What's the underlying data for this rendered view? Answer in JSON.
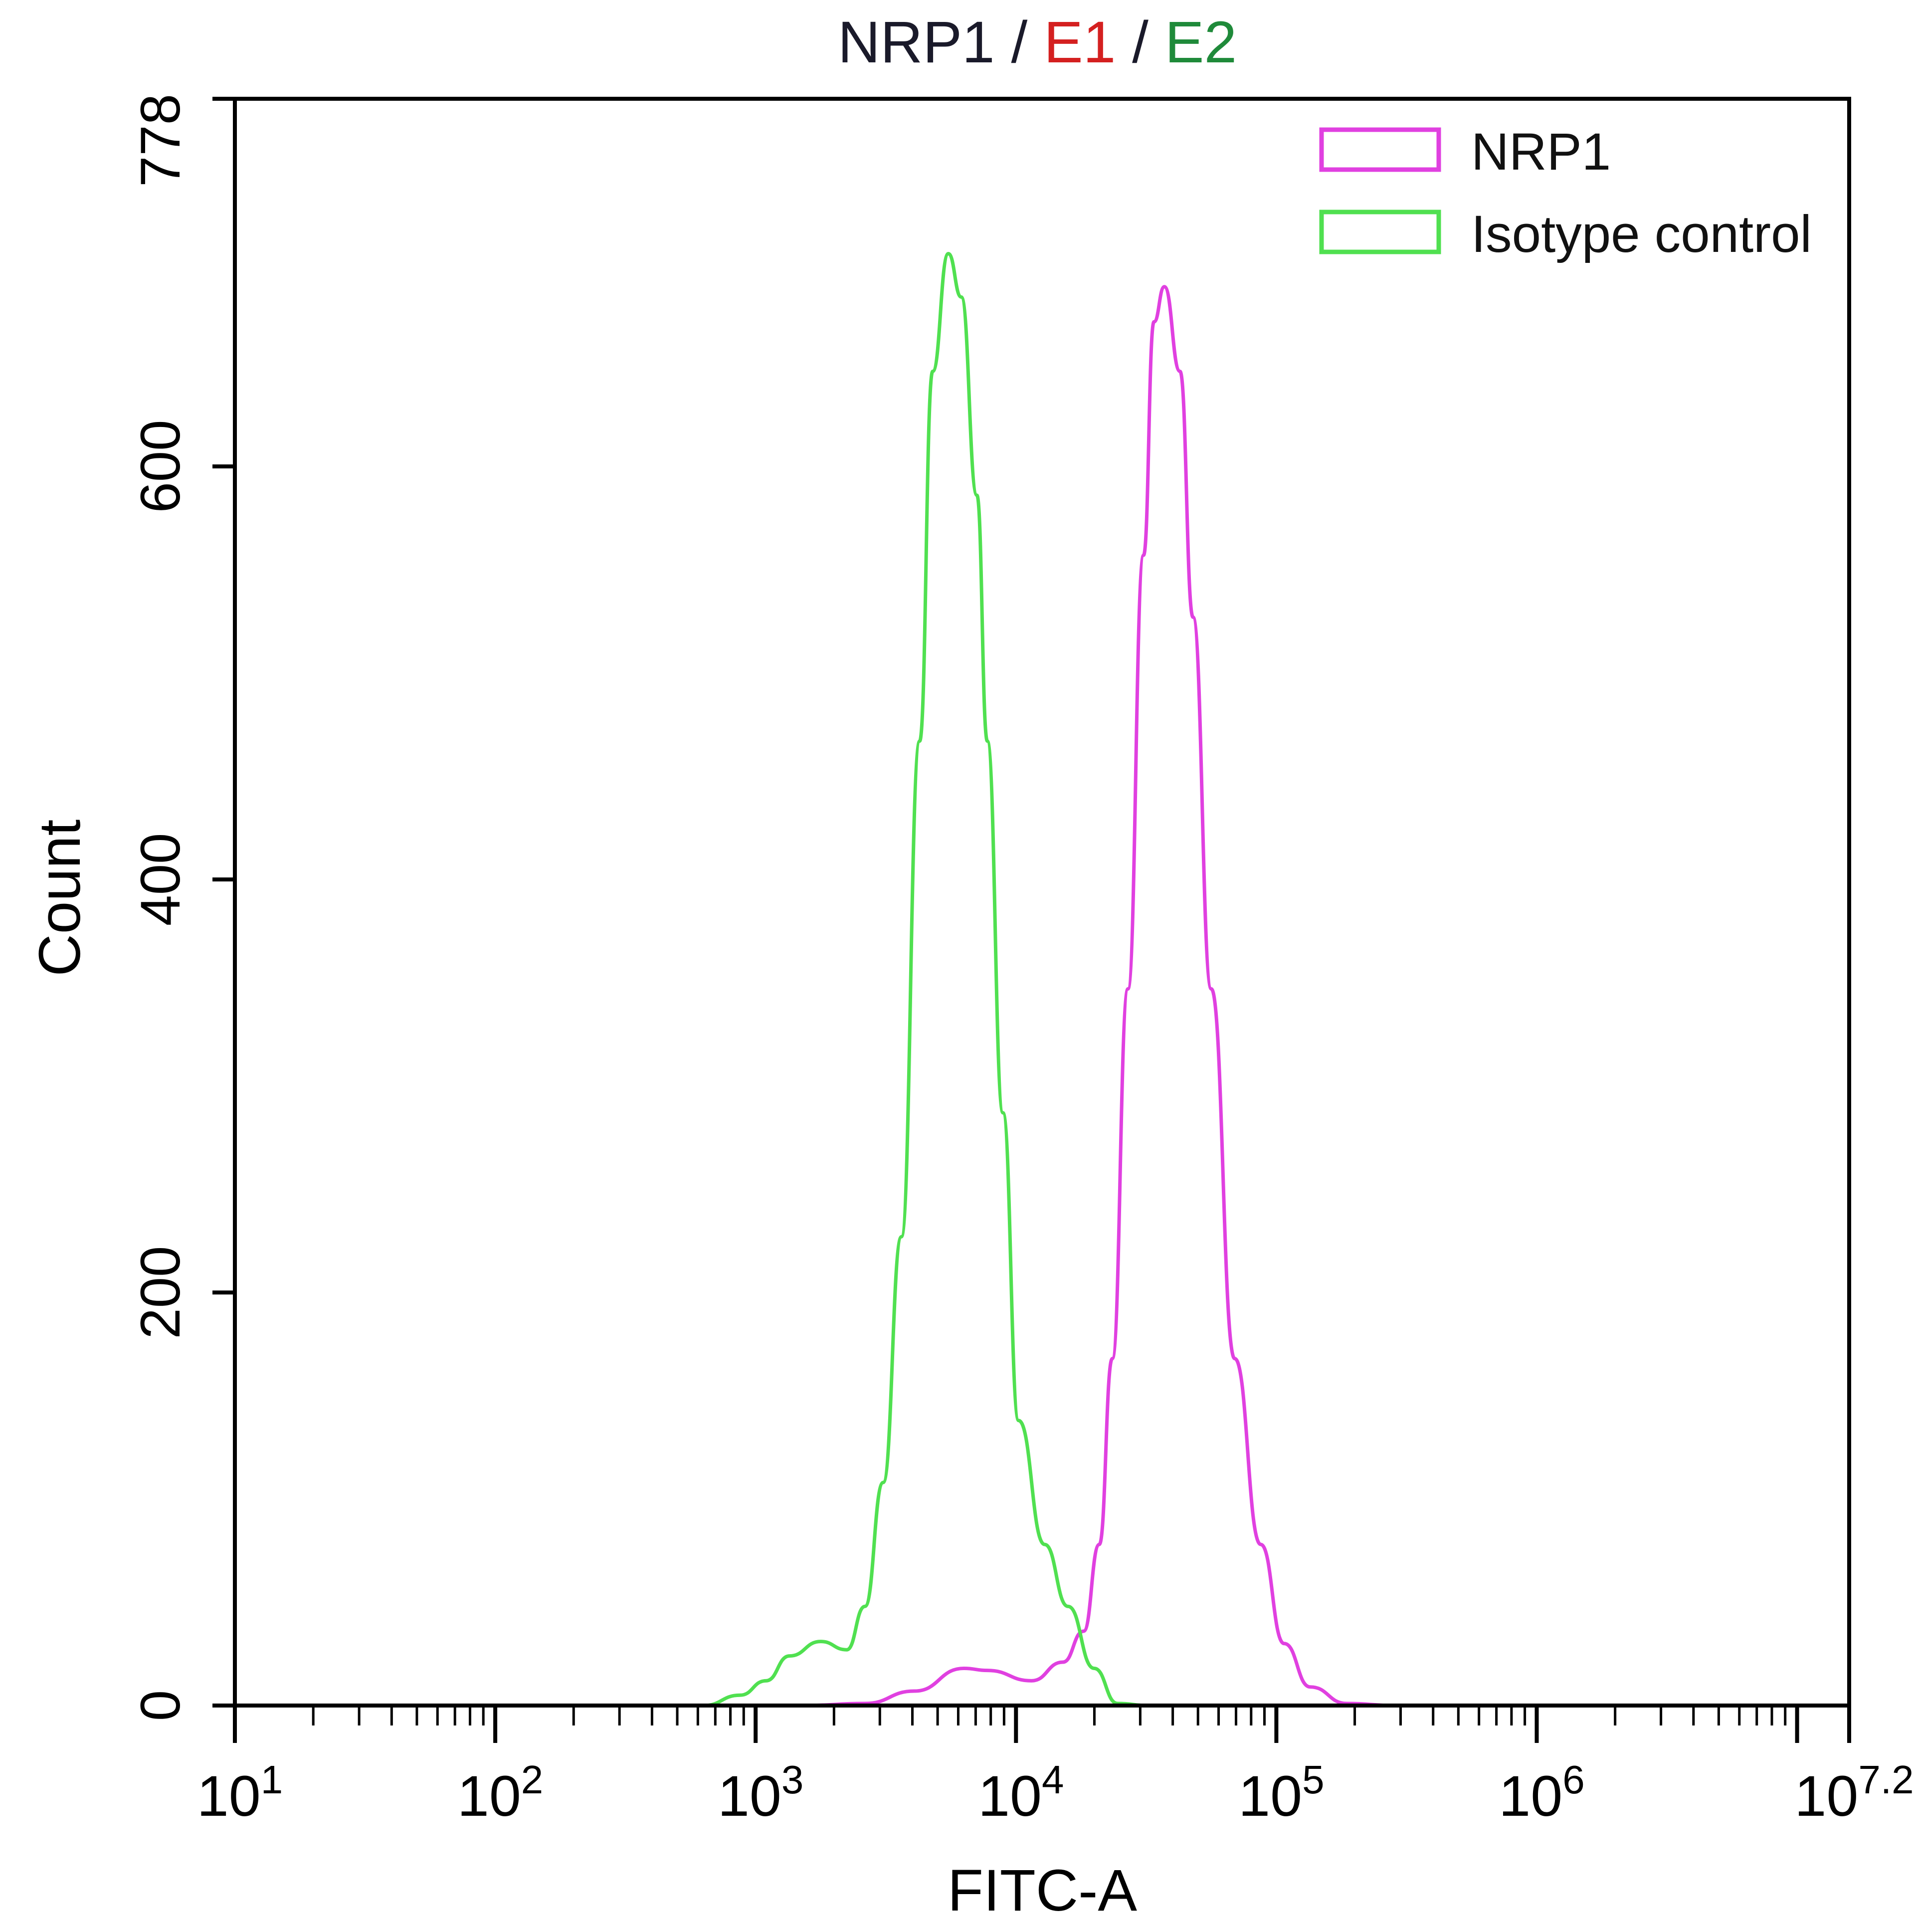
{
  "chart_data": {
    "type": "line",
    "title_parts": [
      {
        "text": "NRP1 / ",
        "color": "#1a1a2a"
      },
      {
        "text": "E1",
        "color": "#d42020"
      },
      {
        "text": " / ",
        "color": "#1a1a2a"
      },
      {
        "text": "E2",
        "color": "#1f8a3a"
      }
    ],
    "xlabel": "FITC-A",
    "ylabel": "Count",
    "xscale": "log",
    "xlim_log10": [
      1,
      7.2
    ],
    "ylim": [
      0,
      778
    ],
    "x_ticks": [
      {
        "base": "10",
        "exp": "1",
        "value_log10": 1
      },
      {
        "base": "10",
        "exp": "2",
        "value_log10": 2
      },
      {
        "base": "10",
        "exp": "3",
        "value_log10": 3
      },
      {
        "base": "10",
        "exp": "4",
        "value_log10": 4
      },
      {
        "base": "10",
        "exp": "5",
        "value_log10": 5
      },
      {
        "base": "10",
        "exp": "6",
        "value_log10": 6
      },
      {
        "base": "10",
        "exp": "7.2",
        "value_log10": 7.2
      }
    ],
    "y_ticks": [
      "0",
      "200",
      "400",
      "600",
      "778"
    ],
    "legend": {
      "placement": "top-right"
    },
    "series": [
      {
        "name": "NRP1",
        "color": "#e040e0",
        "x_log10": [
          3.18,
          3.42,
          3.61,
          3.8,
          3.89,
          4.06,
          4.18,
          4.26,
          4.32,
          4.37,
          4.43,
          4.49,
          4.53,
          4.57,
          4.63,
          4.68,
          4.75,
          4.84,
          4.94,
          5.03,
          5.13,
          5.27,
          5.46
        ],
        "y": [
          0,
          1,
          7,
          18,
          17,
          12,
          21,
          36,
          78,
          168,
          347,
          557,
          670,
          687,
          646,
          527,
          347,
          168,
          78,
          30,
          9,
          1,
          0
        ]
      },
      {
        "name": "Isotype control",
        "color": "#50e050",
        "x_log10": [
          2.8,
          2.94,
          3.04,
          3.13,
          3.25,
          3.35,
          3.42,
          3.49,
          3.56,
          3.63,
          3.68,
          3.74,
          3.79,
          3.85,
          3.89,
          3.95,
          4.01,
          4.11,
          4.2,
          4.3,
          4.39,
          4.51
        ],
        "y": [
          0,
          5,
          12,
          24,
          31,
          27,
          48,
          108,
          227,
          467,
          646,
          703,
          682,
          586,
          467,
          287,
          138,
          78,
          48,
          18,
          1,
          0
        ]
      }
    ]
  }
}
